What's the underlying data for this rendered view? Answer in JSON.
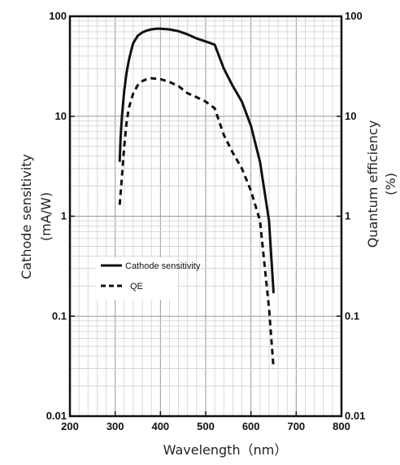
{
  "chart_data": {
    "type": "line",
    "x_axis": {
      "label": "Wavelength（nm）",
      "range": [
        200,
        800
      ],
      "ticks": [
        200,
        300,
        400,
        500,
        600,
        700,
        800
      ],
      "tick_labels": [
        "200",
        "300",
        "400",
        "500",
        "600",
        "700",
        "800"
      ]
    },
    "y_left": {
      "label_line1": "Cathode sensitivity",
      "label_line2": "(mA/W)",
      "scale": "log",
      "range": [
        0.01,
        100
      ],
      "ticks": [
        0.01,
        0.1,
        1,
        10,
        100
      ],
      "tick_labels": [
        "0.01",
        "0.1",
        "1",
        "10",
        "100"
      ]
    },
    "y_right": {
      "label_line1": "Quantum efficiency",
      "label_line2": "(%)",
      "scale": "log",
      "range": [
        0.01,
        100
      ],
      "ticks": [
        0.01,
        0.1,
        1,
        10,
        100
      ],
      "tick_labels": [
        "0.01",
        "0.1",
        "1",
        "10",
        "100"
      ]
    },
    "grid": true,
    "legend_position": "lower-left",
    "series": [
      {
        "name": "Cathode sensitivity",
        "style": "solid",
        "x": [
          310,
          312,
          315,
          320,
          325,
          330,
          335,
          340,
          350,
          360,
          370,
          380,
          390,
          400,
          420,
          440,
          460,
          480,
          500,
          520,
          540,
          560,
          580,
          600,
          620,
          640,
          650
        ],
        "y": [
          3.5,
          6,
          10,
          18,
          27,
          36,
          45,
          54,
          64,
          69,
          72,
          74,
          75,
          75,
          74,
          71,
          66,
          60,
          56,
          52,
          30,
          20,
          14,
          8,
          3.5,
          0.9,
          0.17
        ]
      },
      {
        "name": "QE",
        "style": "dashed",
        "x": [
          310,
          315,
          320,
          325,
          330,
          340,
          350,
          360,
          370,
          380,
          400,
          420,
          440,
          460,
          480,
          500,
          520,
          540,
          560,
          580,
          600,
          620,
          640,
          650
        ],
        "y": [
          1.3,
          2.5,
          5,
          8.5,
          12,
          17,
          20.5,
          22.5,
          23.5,
          24,
          23.5,
          22,
          20,
          17,
          15.5,
          14,
          12,
          6.5,
          4.3,
          3.0,
          1.8,
          0.9,
          0.12,
          0.03
        ]
      }
    ]
  }
}
